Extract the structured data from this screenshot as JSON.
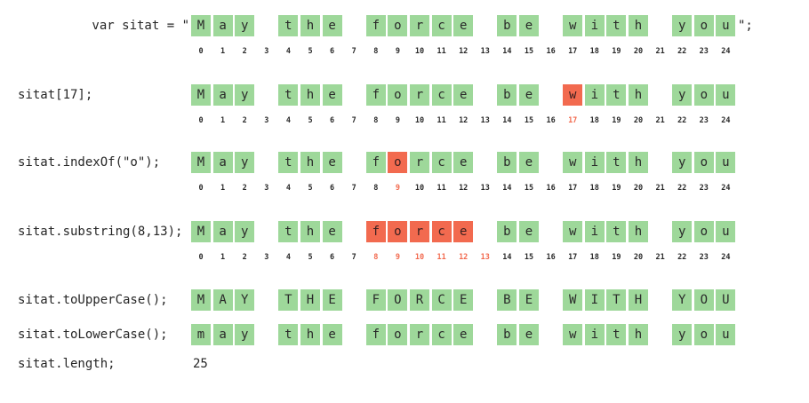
{
  "colors": {
    "cell": "#9ed89a",
    "highlight": "#f26a4f"
  },
  "indices": [
    "0",
    "1",
    "2",
    "3",
    "4",
    "5",
    "6",
    "7",
    "8",
    "9",
    "10",
    "11",
    "12",
    "13",
    "14",
    "15",
    "16",
    "17",
    "18",
    "19",
    "20",
    "21",
    "22",
    "23",
    "24"
  ],
  "rows": [
    {
      "code": "var sitat = \"",
      "suffix": "\";",
      "chars": [
        "M",
        "a",
        "y",
        " ",
        "t",
        "h",
        "e",
        " ",
        "f",
        "o",
        "r",
        "c",
        "e",
        " ",
        "b",
        "e",
        " ",
        "w",
        "i",
        "t",
        "h",
        " ",
        "y",
        "o",
        "u"
      ],
      "highlight": [],
      "show_index": true
    },
    {
      "code": "sitat[17];",
      "chars": [
        "M",
        "a",
        "y",
        " ",
        "t",
        "h",
        "e",
        " ",
        "f",
        "o",
        "r",
        "c",
        "e",
        " ",
        "b",
        "e",
        " ",
        "w",
        "i",
        "t",
        "h",
        " ",
        "y",
        "o",
        "u"
      ],
      "highlight": [
        17
      ],
      "show_index": true
    },
    {
      "code": "sitat.indexOf(\"o\");",
      "chars": [
        "M",
        "a",
        "y",
        " ",
        "t",
        "h",
        "e",
        " ",
        "f",
        "o",
        "r",
        "c",
        "e",
        " ",
        "b",
        "e",
        " ",
        "w",
        "i",
        "t",
        "h",
        " ",
        "y",
        "o",
        "u"
      ],
      "highlight": [
        9
      ],
      "show_index": true
    },
    {
      "code": "sitat.substring(8,13);",
      "chars": [
        "M",
        "a",
        "y",
        " ",
        "t",
        "h",
        "e",
        " ",
        "f",
        "o",
        "r",
        "c",
        "e",
        " ",
        "b",
        "e",
        " ",
        "w",
        "i",
        "t",
        "h",
        " ",
        "y",
        "o",
        "u"
      ],
      "highlight": [
        8,
        9,
        10,
        11,
        12
      ],
      "index_highlight": [
        8,
        9,
        10,
        11,
        12,
        13
      ],
      "show_index": true
    },
    {
      "code": "sitat.toUpperCase();",
      "chars": [
        "M",
        "A",
        "Y",
        " ",
        "T",
        "H",
        "E",
        " ",
        "F",
        "O",
        "R",
        "C",
        "E",
        " ",
        "B",
        "E",
        " ",
        "W",
        "I",
        "T",
        "H",
        " ",
        "Y",
        "O",
        "U"
      ],
      "highlight": [],
      "show_index": false
    },
    {
      "code": "sitat.toLowerCase();",
      "chars": [
        "m",
        "a",
        "y",
        " ",
        "t",
        "h",
        "e",
        " ",
        "f",
        "o",
        "r",
        "c",
        "e",
        " ",
        "b",
        "e",
        " ",
        "w",
        "i",
        "t",
        "h",
        " ",
        "y",
        "o",
        "u"
      ],
      "highlight": [],
      "show_index": false
    }
  ],
  "length_row": {
    "code": "sitat.length;",
    "value": "25"
  }
}
